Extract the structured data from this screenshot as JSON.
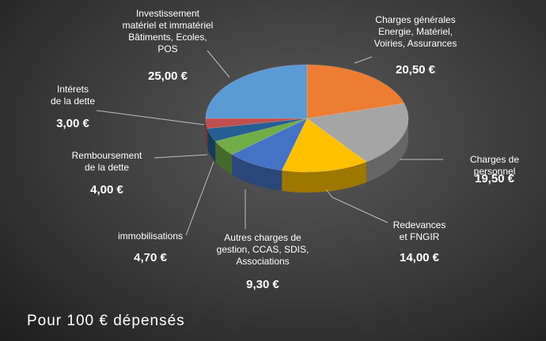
{
  "chart_data": {
    "type": "pie3d",
    "title": "Pour 100 € dépensés",
    "categories": [
      "Charges générales\nEnergie, Matériel,\nVoiries, Assurances",
      "Charges de personnel",
      "Redevances\net FNGIR",
      "Autres charges de\ngestion, CCAS, SDIS,\nAssociations",
      "immobilisations",
      "Remboursement\nde la dette",
      "Intérets\nde la dette",
      "Investissement\nmatériel et immatériel\nBâtiments, Ecoles,\nPOS"
    ],
    "values": [
      20.5,
      19.5,
      14,
      9.3,
      4.7,
      4,
      3,
      25
    ],
    "value_labels": [
      "20,50 €",
      "19,50 €",
      "14,00 €",
      "9,30 €",
      "4,70 €",
      "4,00 €",
      "3,00 €",
      "25,00 €"
    ],
    "colors": [
      "#ed7d31",
      "#a5a5a5",
      "#ffc000",
      "#4472c4",
      "#70ad47",
      "#255e91",
      "#c0504d",
      "#5b9bd5"
    ]
  }
}
